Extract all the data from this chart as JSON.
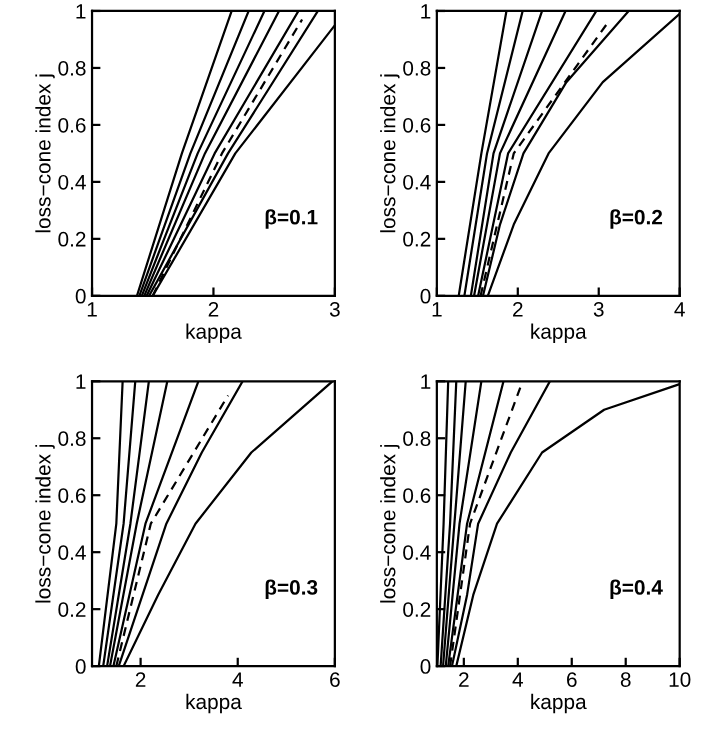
{
  "chart_data": [
    {
      "type": "line",
      "xlabel": "kappa",
      "ylabel": "loss−cone index j",
      "xlim": [
        1,
        3
      ],
      "ylim": [
        0,
        1
      ],
      "xticks": [
        1,
        2,
        3
      ],
      "yticks": [
        0,
        0.2,
        0.4,
        0.6,
        0.8,
        1
      ],
      "grid": false,
      "legend": false,
      "marker": "none",
      "annotations": [
        "β=0.1"
      ],
      "series": [
        {
          "color": "#000000",
          "line_style": "solid",
          "x": [
            1.37,
            1.74,
            2.15
          ],
          "values": [
            0,
            0.5,
            1
          ]
        },
        {
          "color": "#000000",
          "line_style": "solid",
          "x": [
            1.39,
            1.81,
            2.29
          ],
          "values": [
            0,
            0.5,
            1
          ]
        },
        {
          "color": "#000000",
          "line_style": "solid",
          "x": [
            1.41,
            1.87,
            2.42
          ],
          "values": [
            0,
            0.5,
            1
          ]
        },
        {
          "color": "#000000",
          "line_style": "solid",
          "x": [
            1.43,
            1.93,
            2.54
          ],
          "values": [
            0,
            0.5,
            1
          ]
        },
        {
          "color": "#000000",
          "line_style": "solid",
          "x": [
            1.45,
            2.01,
            2.7
          ],
          "values": [
            0,
            0.5,
            1
          ]
        },
        {
          "color": "#000000",
          "line_style": "dashed",
          "x": [
            1.5,
            2.07,
            2.73
          ],
          "values": [
            0,
            0.5,
            0.97
          ]
        },
        {
          "color": "#000000",
          "line_style": "solid",
          "x": [
            1.47,
            2.12,
            2.86
          ],
          "values": [
            0,
            0.5,
            1
          ]
        },
        {
          "color": "#000000",
          "line_style": "solid",
          "x": [
            1.5,
            2.18,
            3.0
          ],
          "values": [
            0,
            0.5,
            0.95
          ]
        }
      ]
    },
    {
      "type": "line",
      "xlabel": "kappa",
      "ylabel": "loss−cone index j",
      "xlim": [
        1,
        4
      ],
      "ylim": [
        0,
        1
      ],
      "xticks": [
        1,
        2,
        3,
        4
      ],
      "yticks": [
        0,
        0.2,
        0.4,
        0.6,
        0.8,
        1
      ],
      "grid": false,
      "legend": false,
      "marker": "none",
      "annotations": [
        "β=0.2"
      ],
      "series": [
        {
          "color": "#000000",
          "line_style": "solid",
          "x": [
            1.27,
            1.55,
            1.86
          ],
          "values": [
            0,
            0.5,
            1
          ]
        },
        {
          "color": "#000000",
          "line_style": "solid",
          "x": [
            1.34,
            1.62,
            2.06
          ],
          "values": [
            0,
            0.5,
            1
          ]
        },
        {
          "color": "#000000",
          "line_style": "solid",
          "x": [
            1.42,
            1.7,
            2.3
          ],
          "values": [
            0,
            0.5,
            1
          ]
        },
        {
          "color": "#000000",
          "line_style": "solid",
          "x": [
            1.46,
            1.78,
            2.59
          ],
          "values": [
            0,
            0.5,
            1
          ]
        },
        {
          "color": "#000000",
          "line_style": "solid",
          "x": [
            1.51,
            1.88,
            2.97
          ],
          "values": [
            0,
            0.5,
            1
          ]
        },
        {
          "color": "#000000",
          "line_style": "dashed",
          "x": [
            1.54,
            1.95,
            3.14
          ],
          "values": [
            0,
            0.5,
            0.97
          ]
        },
        {
          "color": "#000000",
          "line_style": "solid",
          "x": [
            1.57,
            1.78,
            2.07,
            2.6,
            3.37
          ],
          "values": [
            0,
            0.25,
            0.5,
            0.75,
            1
          ]
        },
        {
          "color": "#000000",
          "line_style": "solid",
          "x": [
            1.63,
            1.95,
            2.38,
            3.05,
            4.0
          ],
          "values": [
            0,
            0.25,
            0.5,
            0.75,
            0.99
          ]
        }
      ]
    },
    {
      "type": "line",
      "xlabel": "kappa",
      "ylabel": "loss−cone index j",
      "xlim": [
        1,
        6
      ],
      "ylim": [
        0,
        1
      ],
      "xticks": [
        2,
        4,
        6
      ],
      "yticks": [
        0,
        0.2,
        0.4,
        0.6,
        0.8,
        1
      ],
      "grid": false,
      "legend": false,
      "marker": "none",
      "annotations": [
        "β=0.3"
      ],
      "series": [
        {
          "color": "#000000",
          "line_style": "solid",
          "x": [
            1.14,
            1.5,
            1.63
          ],
          "values": [
            0,
            0.5,
            1
          ]
        },
        {
          "color": "#000000",
          "line_style": "solid",
          "x": [
            1.23,
            1.65,
            1.89
          ],
          "values": [
            0,
            0.5,
            1
          ]
        },
        {
          "color": "#000000",
          "line_style": "solid",
          "x": [
            1.31,
            1.79,
            2.17
          ],
          "values": [
            0,
            0.5,
            1
          ]
        },
        {
          "color": "#000000",
          "line_style": "solid",
          "x": [
            1.37,
            1.92,
            2.55
          ],
          "values": [
            0,
            0.5,
            1
          ]
        },
        {
          "color": "#000000",
          "line_style": "solid",
          "x": [
            1.44,
            2.1,
            3.19
          ],
          "values": [
            0,
            0.5,
            1
          ]
        },
        {
          "color": "#000000",
          "line_style": "dashed",
          "x": [
            1.5,
            2.21,
            3.8
          ],
          "values": [
            0,
            0.5,
            0.95
          ]
        },
        {
          "color": "#000000",
          "line_style": "solid",
          "x": [
            1.55,
            2.04,
            2.53,
            3.26,
            4.1
          ],
          "values": [
            0,
            0.25,
            0.5,
            0.75,
            1
          ]
        },
        {
          "color": "#000000",
          "line_style": "solid",
          "x": [
            1.65,
            2.36,
            3.13,
            4.28,
            5.95
          ],
          "values": [
            0,
            0.25,
            0.5,
            0.75,
            1
          ]
        }
      ]
    },
    {
      "type": "line",
      "xlabel": "kappa",
      "ylabel": "loss−cone index j",
      "xlim": [
        1,
        10
      ],
      "ylim": [
        0,
        1
      ],
      "xticks": [
        2,
        4,
        6,
        8,
        10
      ],
      "yticks": [
        0,
        0.2,
        0.4,
        0.6,
        0.8,
        1
      ],
      "grid": false,
      "legend": false,
      "marker": "none",
      "annotations": [
        "β=0.4"
      ],
      "series": [
        {
          "color": "#000000",
          "line_style": "solid",
          "x": [
            1.02,
            1.25,
            1.42
          ],
          "values": [
            0,
            0.5,
            1
          ]
        },
        {
          "color": "#000000",
          "line_style": "solid",
          "x": [
            1.14,
            1.49,
            1.72
          ],
          "values": [
            0,
            0.5,
            1
          ]
        },
        {
          "color": "#000000",
          "line_style": "solid",
          "x": [
            1.23,
            1.65,
            2.07
          ],
          "values": [
            0,
            0.5,
            1
          ]
        },
        {
          "color": "#000000",
          "line_style": "solid",
          "x": [
            1.33,
            1.84,
            2.65
          ],
          "values": [
            0,
            0.5,
            1
          ]
        },
        {
          "color": "#000000",
          "line_style": "solid",
          "x": [
            1.42,
            2.12,
            3.47
          ],
          "values": [
            0,
            0.5,
            1
          ]
        },
        {
          "color": "#000000",
          "line_style": "dashed",
          "x": [
            1.49,
            2.23,
            4.1
          ],
          "values": [
            0,
            0.5,
            0.98
          ]
        },
        {
          "color": "#000000",
          "line_style": "solid",
          "x": [
            1.56,
            2.12,
            2.53,
            3.74,
            5.19
          ],
          "values": [
            0,
            0.25,
            0.5,
            0.75,
            1
          ]
        },
        {
          "color": "#000000",
          "line_style": "solid",
          "x": [
            1.72,
            2.35,
            3.23,
            4.9,
            7.2,
            10.0
          ],
          "values": [
            0,
            0.25,
            0.5,
            0.75,
            0.9,
            0.99
          ]
        }
      ]
    }
  ]
}
